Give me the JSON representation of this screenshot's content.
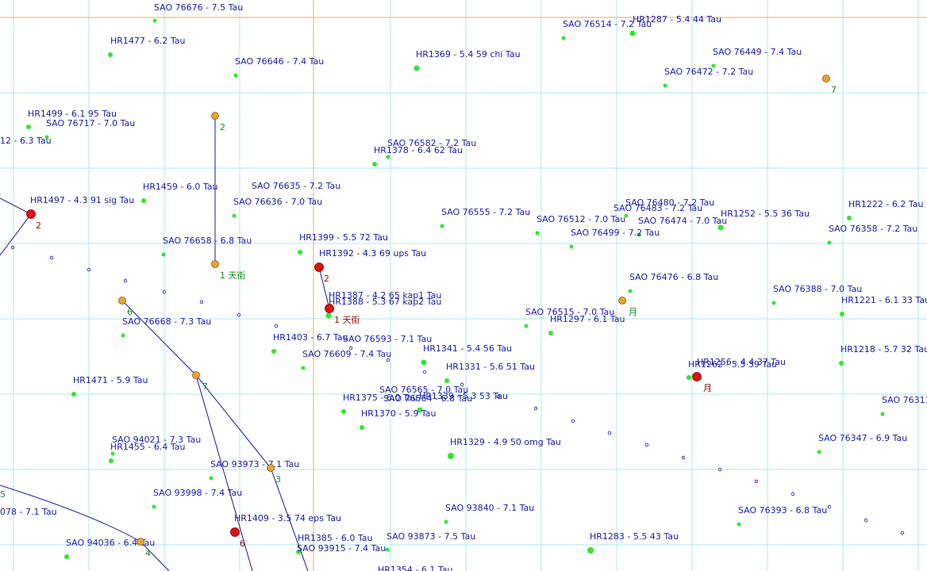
{
  "stars": [
    {
      "label": "SAO 76676 - 7.5 Tau"
    },
    {
      "label": "HR1477 - 6.2 Tau"
    },
    {
      "label": "SAO 76646 - 7.4 Tau"
    },
    {
      "label": "HR1369 - 5.4 59 chi Tau"
    },
    {
      "label": "SAO 76514 - 7.2 Tau"
    },
    {
      "label": "HR1287 - 5.4 44 Tau"
    },
    {
      "label": "SAO 76449 - 7.4 Tau"
    },
    {
      "label": "SAO 76472 - 7.2 Tau"
    },
    {
      "label": "HR1499 - 6.1 95 Tau"
    },
    {
      "label": "SAO 76717 - 7.0 Tau"
    },
    {
      "label": "12 - 6.3 Tau"
    },
    {
      "label": "SAO 76582 - 7.2 Tau"
    },
    {
      "label": "HR1378 - 6.4 62 Tau"
    },
    {
      "label": "HR1459 - 6.0 Tau"
    },
    {
      "label": "SAO 76635 - 7.2 Tau"
    },
    {
      "label": "SAO 76636 - 7.0 Tau"
    },
    {
      "label": "HR1497 - 4.3 91 sig Tau"
    },
    {
      "label": "SAO 76555 - 7.2 Tau"
    },
    {
      "label": "SAO 76512 - 7.0 Tau"
    },
    {
      "label": "SAO 76480 - 7.2 Tau"
    },
    {
      "label": "SAO 76483 - 7.2 Tau"
    },
    {
      "label": "SAO 76474 - 7.0 Tau"
    },
    {
      "label": "SAO 76499 - 7.2 Tau"
    },
    {
      "label": "HR1252 - 5.5 36 Tau"
    },
    {
      "label": "HR1222 - 6.2 Tau"
    },
    {
      "label": "SAO 76358 - 7.2 Tau"
    },
    {
      "label": "SAO 76658 - 6.8 Tau"
    },
    {
      "label": "HR1399 - 5.5 72 Tau"
    },
    {
      "label": "HR1392 - 4.3 69 ups Tau"
    },
    {
      "label": "HR1387 - 4.2 65 kap1 Tau"
    },
    {
      "label": "HR1388 - 5.3 67 kap2 Tau"
    },
    {
      "label": "SAO 76476 - 6.8 Tau"
    },
    {
      "label": "SAO 76388 - 7.0 Tau"
    },
    {
      "label": "HR1221 - 6.1 33 Tau"
    },
    {
      "label": "SAO 76515 - 7.0 Tau"
    },
    {
      "label": "HR1297 - 6.1 Tau"
    },
    {
      "label": "SAO 76668 - 7.3 Tau"
    },
    {
      "label": "HR1403 - 6.7 Tau"
    },
    {
      "label": "SAO 76593 - 7.1 Tau"
    },
    {
      "label": "SAO 76609 - 7.4 Tau"
    },
    {
      "label": "HR1341 - 5.4 56 Tau"
    },
    {
      "label": "HR1331 - 5.6 51 Tau"
    },
    {
      "label": "HR1256 - 4.4 37 Tau"
    },
    {
      "label": "HR1262 - 5.5 39 Tau"
    },
    {
      "label": "HR1218 - 5.7 32 Tau"
    },
    {
      "label": "HR1471 - 5.9 Tau"
    },
    {
      "label": "SAO 76565 - 7.0 Tau"
    },
    {
      "label": "SAO 76564 - 6.8 Tau"
    },
    {
      "label": "HR1339 - 5.3 53 Tau"
    },
    {
      "label": "HR1375 - 6.0 Tau"
    },
    {
      "label": "HR1370 - 5.9 Tau"
    },
    {
      "label": "SAO 76311"
    },
    {
      "label": "SAO 94021 - 7.3 Tau"
    },
    {
      "label": "HR1455 - 6.4 Tau"
    },
    {
      "label": "HR1329 - 4.9 50 omg Tau"
    },
    {
      "label": "SAO 76347 - 6.9 Tau"
    },
    {
      "label": "SAO 93973 - 7.1 Tau"
    },
    {
      "label": "SAO 93998 - 7.4 Tau"
    },
    {
      "label": "SAO 93840 - 7.1 Tau"
    },
    {
      "label": "SAO 76393 - 6.8 Tau"
    },
    {
      "label": "078 - 7.1 Tau"
    },
    {
      "label": "HR1409 - 3.5 74 eps Tau"
    },
    {
      "label": "HR1385 - 6.0 Tau"
    },
    {
      "label": "SAO 93873 - 7.5 Tau"
    },
    {
      "label": "HR1283 - 5.5 43 Tau"
    },
    {
      "label": "SAO 94036 - 6.4 Tau"
    },
    {
      "label": "SAO 93915 - 7.4 Tau"
    },
    {
      "label": "HR1354 - 6.1 Tau"
    }
  ],
  "markers": [
    {
      "label": "2"
    },
    {
      "label": "1 天街"
    },
    {
      "label": "6"
    },
    {
      "label": "7"
    },
    {
      "label": "3"
    },
    {
      "label": "4"
    },
    {
      "label": "7"
    },
    {
      "label": "月"
    },
    {
      "label": "2"
    },
    {
      "label": "2"
    },
    {
      "label": "1 天街"
    },
    {
      "label": "月"
    },
    {
      "label": "6"
    },
    {
      "label": "5"
    }
  ]
}
